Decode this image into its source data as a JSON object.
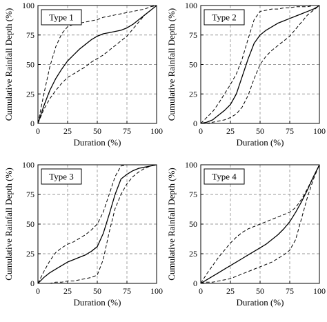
{
  "chart_data": [
    {
      "type": "line",
      "title": "",
      "xlabel": "Duration (%)",
      "ylabel": "Cumulative Rainfall Depth (%)",
      "xlim": [
        0,
        100
      ],
      "ylim": [
        0,
        100
      ],
      "xticks": [
        "0",
        "25",
        "50",
        "75",
        "100"
      ],
      "yticks": [
        "0",
        "25",
        "50",
        "75",
        "100"
      ],
      "grid": true,
      "legend_label": "Type  1",
      "legend_position": "top-left",
      "series": [
        {
          "style": "solid",
          "x": [
            0,
            5,
            10,
            15,
            20,
            25,
            30,
            35,
            40,
            45,
            50,
            55,
            60,
            65,
            70,
            75,
            80,
            85,
            90,
            95,
            100
          ],
          "y": [
            0,
            15,
            28,
            38,
            46,
            53,
            58,
            63,
            67,
            71,
            74,
            76,
            77,
            78,
            79,
            81,
            84,
            88,
            92,
            96,
            100
          ]
        },
        {
          "style": "dashed",
          "x": [
            0,
            5,
            10,
            15,
            20,
            25,
            30,
            35,
            40,
            45,
            50,
            55,
            60,
            65,
            70,
            75,
            80,
            85,
            90,
            95,
            100
          ],
          "y": [
            0,
            25,
            48,
            65,
            76,
            82,
            84,
            85,
            86,
            87,
            88,
            90,
            91,
            92,
            93,
            94,
            95,
            96,
            97,
            99,
            100
          ]
        },
        {
          "style": "dashed",
          "x": [
            0,
            5,
            10,
            15,
            20,
            25,
            30,
            35,
            40,
            45,
            50,
            55,
            60,
            65,
            70,
            75,
            80,
            85,
            90,
            95,
            100
          ],
          "y": [
            0,
            12,
            21,
            28,
            34,
            39,
            42,
            45,
            48,
            52,
            55,
            58,
            62,
            66,
            70,
            74,
            80,
            86,
            92,
            96,
            100
          ]
        }
      ]
    },
    {
      "type": "line",
      "title": "",
      "xlabel": "Duration (%)",
      "ylabel": "Cumulative Rainfall Depth (%)",
      "xlim": [
        0,
        100
      ],
      "ylim": [
        0,
        100
      ],
      "xticks": [
        "0",
        "25",
        "50",
        "75",
        "100"
      ],
      "yticks": [
        "0",
        "25",
        "50",
        "75",
        "100"
      ],
      "grid": true,
      "legend_label": "Type  2",
      "legend_position": "top-left",
      "series": [
        {
          "style": "solid",
          "x": [
            0,
            5,
            10,
            15,
            20,
            25,
            30,
            35,
            40,
            45,
            50,
            55,
            60,
            65,
            70,
            75,
            80,
            85,
            90,
            95,
            100
          ],
          "y": [
            0,
            1,
            3,
            7,
            11,
            16,
            25,
            40,
            55,
            68,
            75,
            79,
            82,
            85,
            87,
            89,
            91,
            93,
            95,
            97,
            100
          ]
        },
        {
          "style": "dashed",
          "x": [
            0,
            5,
            10,
            15,
            20,
            25,
            30,
            35,
            40,
            45,
            50,
            55,
            60,
            65,
            70,
            75,
            80,
            85,
            90,
            95,
            100
          ],
          "y": [
            0,
            5,
            10,
            17,
            25,
            33,
            42,
            55,
            72,
            88,
            95,
            96,
            97,
            97,
            98,
            98,
            99,
            99,
            99,
            100,
            100
          ]
        },
        {
          "style": "dashed",
          "x": [
            0,
            5,
            10,
            15,
            20,
            25,
            30,
            35,
            40,
            45,
            50,
            55,
            60,
            65,
            70,
            75,
            80,
            85,
            90,
            95,
            100
          ],
          "y": [
            0,
            0,
            1,
            2,
            3,
            5,
            8,
            14,
            24,
            38,
            50,
            57,
            62,
            66,
            70,
            74,
            80,
            86,
            92,
            96,
            100
          ]
        }
      ]
    },
    {
      "type": "line",
      "title": "",
      "xlabel": "Duration (%)",
      "ylabel": "Cumulative Rainfall Depth (%)",
      "xlim": [
        0,
        100
      ],
      "ylim": [
        0,
        100
      ],
      "xticks": [
        "0",
        "25",
        "50",
        "75",
        "100"
      ],
      "yticks": [
        "0",
        "25",
        "50",
        "75",
        "100"
      ],
      "grid": true,
      "legend_label": "Type  3",
      "legend_position": "top-left",
      "series": [
        {
          "style": "solid",
          "x": [
            0,
            5,
            10,
            15,
            20,
            25,
            30,
            35,
            40,
            45,
            50,
            55,
            60,
            65,
            70,
            75,
            80,
            85,
            90,
            95,
            100
          ],
          "y": [
            0,
            5,
            9,
            12,
            15,
            18,
            20,
            22,
            24,
            27,
            31,
            42,
            58,
            75,
            88,
            92,
            95,
            97,
            98,
            99,
            100
          ]
        },
        {
          "style": "dashed",
          "x": [
            0,
            5,
            10,
            15,
            20,
            25,
            30,
            35,
            40,
            45,
            50,
            55,
            60,
            65,
            70,
            75,
            80,
            85,
            90,
            95,
            100
          ],
          "y": [
            0,
            10,
            19,
            26,
            30,
            33,
            35,
            38,
            41,
            45,
            50,
            60,
            75,
            90,
            99,
            100,
            100,
            100,
            100,
            100,
            100
          ]
        },
        {
          "style": "dashed",
          "x": [
            0,
            5,
            10,
            15,
            20,
            25,
            30,
            35,
            40,
            45,
            50,
            55,
            60,
            65,
            70,
            75,
            80,
            85,
            90,
            95,
            100
          ],
          "y": [
            0,
            0,
            0,
            1,
            1,
            2,
            2,
            3,
            4,
            5,
            7,
            20,
            43,
            63,
            75,
            84,
            90,
            94,
            97,
            99,
            100
          ]
        }
      ]
    },
    {
      "type": "line",
      "title": "",
      "xlabel": "Duration (%)",
      "ylabel": "Cumulative Rainfall Depth (%)",
      "xlim": [
        0,
        100
      ],
      "ylim": [
        0,
        100
      ],
      "xticks": [
        "0",
        "25",
        "50",
        "75",
        "100"
      ],
      "yticks": [
        "0",
        "25",
        "50",
        "75",
        "100"
      ],
      "grid": true,
      "legend_label": "Type  4",
      "legend_position": "top-left",
      "series": [
        {
          "style": "solid",
          "x": [
            0,
            5,
            10,
            15,
            20,
            25,
            30,
            35,
            40,
            45,
            50,
            55,
            60,
            65,
            70,
            75,
            80,
            85,
            90,
            95,
            100
          ],
          "y": [
            0,
            3,
            6,
            9,
            12,
            15,
            18,
            21,
            24,
            27,
            30,
            33,
            37,
            41,
            46,
            52,
            60,
            69,
            79,
            90,
            100
          ]
        },
        {
          "style": "dashed",
          "x": [
            0,
            5,
            10,
            15,
            20,
            25,
            30,
            35,
            40,
            45,
            50,
            55,
            60,
            65,
            70,
            75,
            80,
            85,
            90,
            95,
            100
          ],
          "y": [
            0,
            8,
            15,
            22,
            28,
            34,
            39,
            43,
            46,
            48,
            50,
            52,
            54,
            56,
            58,
            60,
            64,
            71,
            80,
            90,
            100
          ]
        },
        {
          "style": "dashed",
          "x": [
            0,
            5,
            10,
            15,
            20,
            25,
            30,
            35,
            40,
            45,
            50,
            55,
            60,
            65,
            70,
            75,
            80,
            85,
            90,
            95,
            100
          ],
          "y": [
            0,
            1,
            1,
            2,
            3,
            4,
            6,
            8,
            10,
            12,
            14,
            16,
            18,
            21,
            24,
            28,
            37,
            55,
            73,
            88,
            100
          ]
        }
      ]
    }
  ]
}
